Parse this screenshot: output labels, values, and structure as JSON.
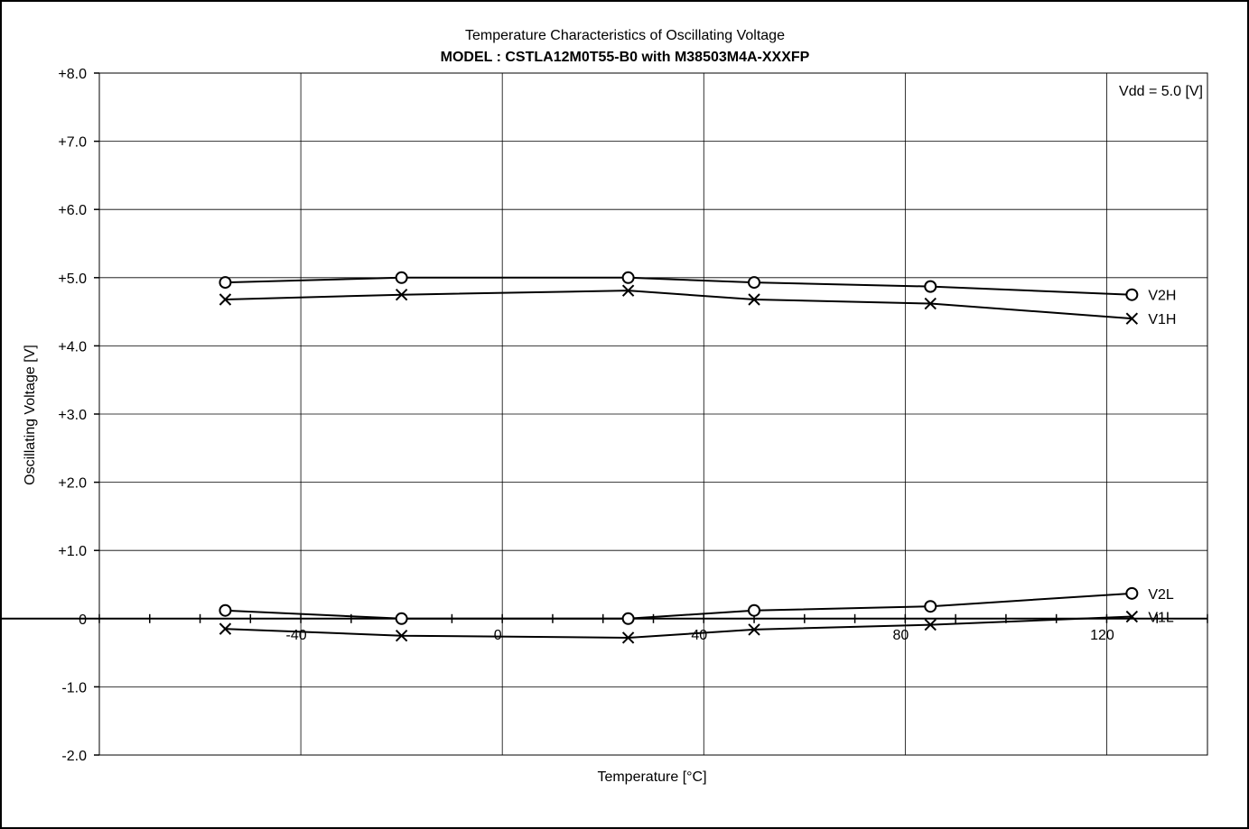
{
  "chart_data": {
    "type": "line",
    "title": "Temperature Characteristics of Oscillating Voltage",
    "subtitle": "MODEL : CSTLA12M0T55-B0 with M38503M4A-XXXFP",
    "xlabel": "Temperature [°C]",
    "ylabel": "Oscillating Voltage [V]",
    "annotation": "Vdd = 5.0 [V]",
    "xlim": [
      -80,
      140
    ],
    "ylim": [
      -2.0,
      8.0
    ],
    "grid": true,
    "xticks": [
      {
        "value": -40,
        "label": "-40"
      },
      {
        "value": 0,
        "label": "0"
      },
      {
        "value": 40,
        "label": "40"
      },
      {
        "value": 80,
        "label": "80"
      },
      {
        "value": 120,
        "label": "120"
      }
    ],
    "yticks": [
      {
        "value": 8,
        "label": "+8.0"
      },
      {
        "value": 7,
        "label": "+7.0"
      },
      {
        "value": 6,
        "label": "+6.0"
      },
      {
        "value": 5,
        "label": "+5.0"
      },
      {
        "value": 4,
        "label": "+4.0"
      },
      {
        "value": 3,
        "label": "+3.0"
      },
      {
        "value": 2,
        "label": "+2.0"
      },
      {
        "value": 1,
        "label": "+1.0"
      },
      {
        "value": 0,
        "label": "0"
      },
      {
        "value": -1,
        "label": "-1.0"
      },
      {
        "value": -2,
        "label": "-2.0"
      }
    ],
    "x_minor_step": 10,
    "series": [
      {
        "name": "V2H",
        "marker": "circle",
        "x": [
          -55,
          -20,
          25,
          50,
          85,
          125
        ],
        "y": [
          4.93,
          5.0,
          5.0,
          4.93,
          4.87,
          4.75
        ]
      },
      {
        "name": "V1H",
        "marker": "cross",
        "x": [
          -55,
          -20,
          25,
          50,
          85,
          125
        ],
        "y": [
          4.68,
          4.75,
          4.81,
          4.68,
          4.62,
          4.4
        ]
      },
      {
        "name": "V2L",
        "marker": "circle",
        "x": [
          -55,
          -20,
          25,
          50,
          85,
          125
        ],
        "y": [
          0.12,
          0.0,
          0.0,
          0.12,
          0.18,
          0.37
        ]
      },
      {
        "name": "V1L",
        "marker": "cross",
        "x": [
          -55,
          -20,
          25,
          50,
          85,
          125
        ],
        "y": [
          -0.15,
          -0.25,
          -0.28,
          -0.16,
          -0.09,
          0.03
        ]
      }
    ]
  }
}
